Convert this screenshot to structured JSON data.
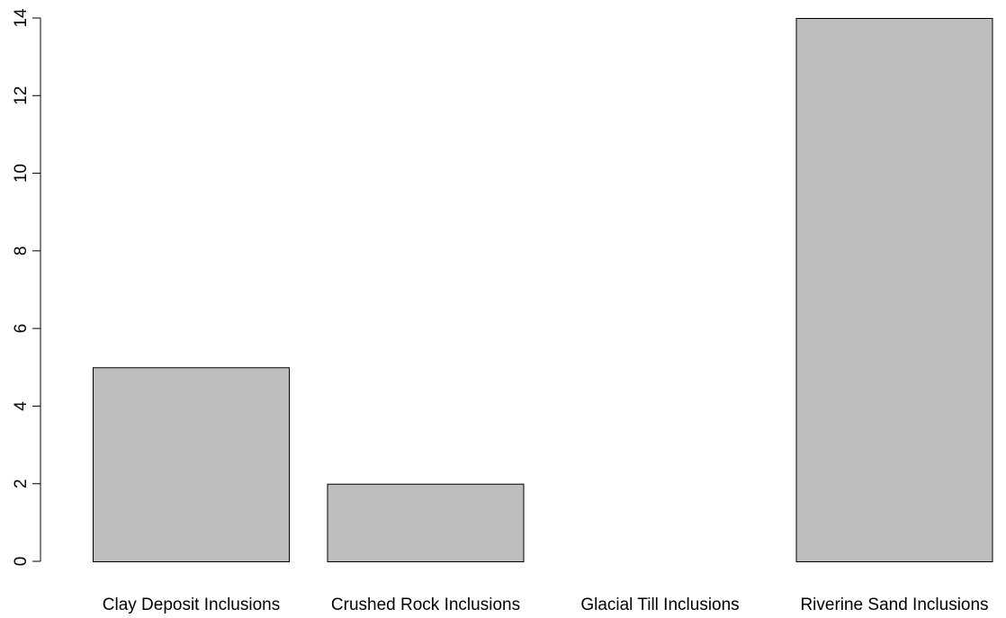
{
  "chart_data": {
    "type": "bar",
    "categories": [
      "Clay Deposit Inclusions",
      "Crushed Rock Inclusions",
      "Glacial Till Inclusions",
      "Riverine Sand Inclusions"
    ],
    "values": [
      5,
      2,
      0,
      14
    ],
    "yticks": [
      "0",
      "2",
      "4",
      "6",
      "8",
      "10",
      "12",
      "14"
    ],
    "ylim": [
      0,
      14
    ],
    "title": "",
    "xlabel": "",
    "ylabel": "",
    "grid": false,
    "bar_color": "#bebebe",
    "bar_border_color": "#000000",
    "axis_color": "#000000"
  }
}
